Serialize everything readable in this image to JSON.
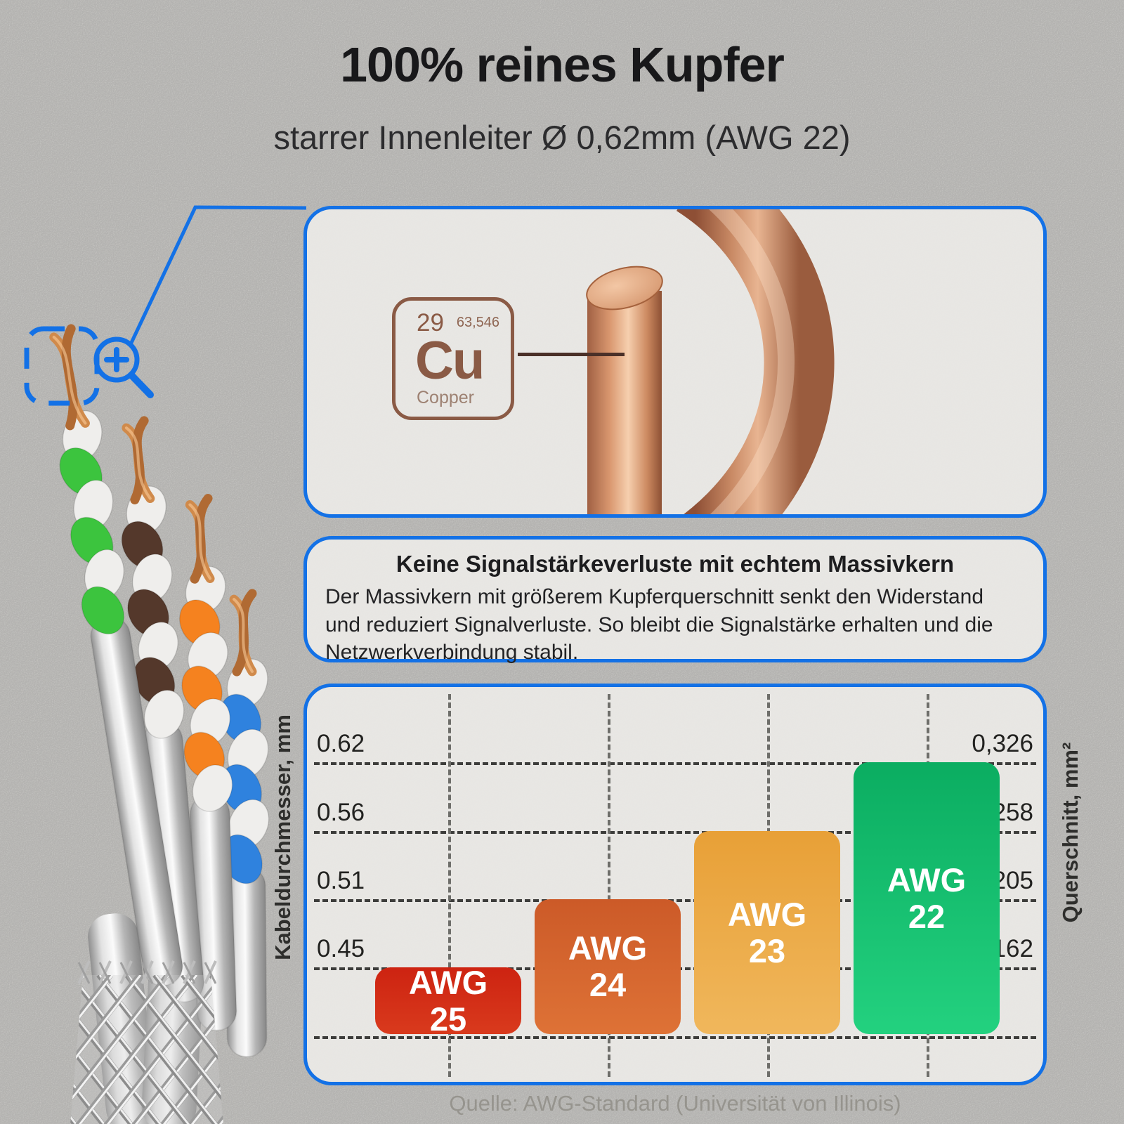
{
  "page": {
    "background": "#d7d6d3",
    "accent_blue": "#1371e6",
    "copper_brown": "#8a5a45"
  },
  "header": {
    "title": "100% reines Kupfer",
    "subtitle": "starrer Innenleiter Ø 0,62mm (AWG 22)"
  },
  "element_card": {
    "atomic_number": "29",
    "atomic_mass": "63,546",
    "symbol": "Cu",
    "name": "Copper"
  },
  "info_box": {
    "title": "Keine Signalstärkeverluste mit echtem Massivkern",
    "body": "Der Massivkern mit größerem Kupferquerschnitt senkt den Widerstand und reduziert Signalverluste. So bleibt die Signalstärke erhalten und die Netzwerkverbindung stabil."
  },
  "chart_data": {
    "type": "bar",
    "categories": [
      "AWG 25",
      "AWG 24",
      "AWG 23",
      "AWG 22"
    ],
    "series": [
      {
        "name": "Kabeldurchmesser, mm",
        "values": [
          0.45,
          0.51,
          0.56,
          0.62
        ]
      },
      {
        "name": "Querschnitt, mm²",
        "values": [
          0.162,
          0.205,
          0.258,
          0.326
        ]
      }
    ],
    "left_axis": {
      "label": "Kabeldurchmesser, mm",
      "ticks": [
        "0.62",
        "0.56",
        "0.51",
        "0.45"
      ]
    },
    "right_axis": {
      "label": "Querschnitt, mm²",
      "ticks": [
        "0,326",
        "0,258",
        "0,205",
        "0,162"
      ]
    },
    "bar_colors": [
      [
        "#cd2311",
        "#d93a1d"
      ],
      [
        "#cc5a28",
        "#de7236"
      ],
      [
        "#e8a037",
        "#f0b75c"
      ],
      [
        "#0bad61",
        "#23d17f"
      ]
    ],
    "grid": "dashed",
    "legend_position": "none",
    "source": "Quelle: AWG-Standard (Universität von Illinois)"
  },
  "cable": {
    "pair_names": [
      "green-white",
      "brown-white",
      "orange-white",
      "blue-white"
    ],
    "pair_colors": [
      "#3cc43e",
      "#54382b",
      "#f5821f",
      "#2f82de"
    ],
    "wire_white": "#efeeec"
  },
  "icons": {
    "zoom_in": "magnifier-with-plus"
  }
}
